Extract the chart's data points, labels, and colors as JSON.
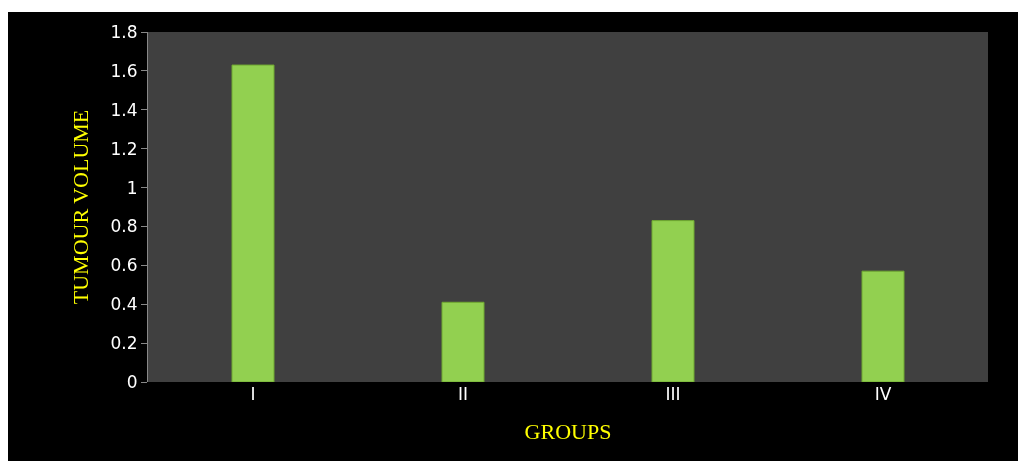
{
  "chart_data": {
    "type": "bar",
    "xlabel": "GROUPS",
    "ylabel": "TUMOUR VOLUME",
    "categories": [
      "I",
      "II",
      "III",
      "IV"
    ],
    "values": [
      1.63,
      0.41,
      0.83,
      0.57
    ],
    "color": "#92d050",
    "ylim": [
      0,
      1.8
    ],
    "yticks": [
      0,
      0.2,
      0.4,
      0.6,
      0.8,
      1,
      1.2,
      1.4,
      1.6,
      1.8
    ],
    "grid": false,
    "legend": false
  }
}
